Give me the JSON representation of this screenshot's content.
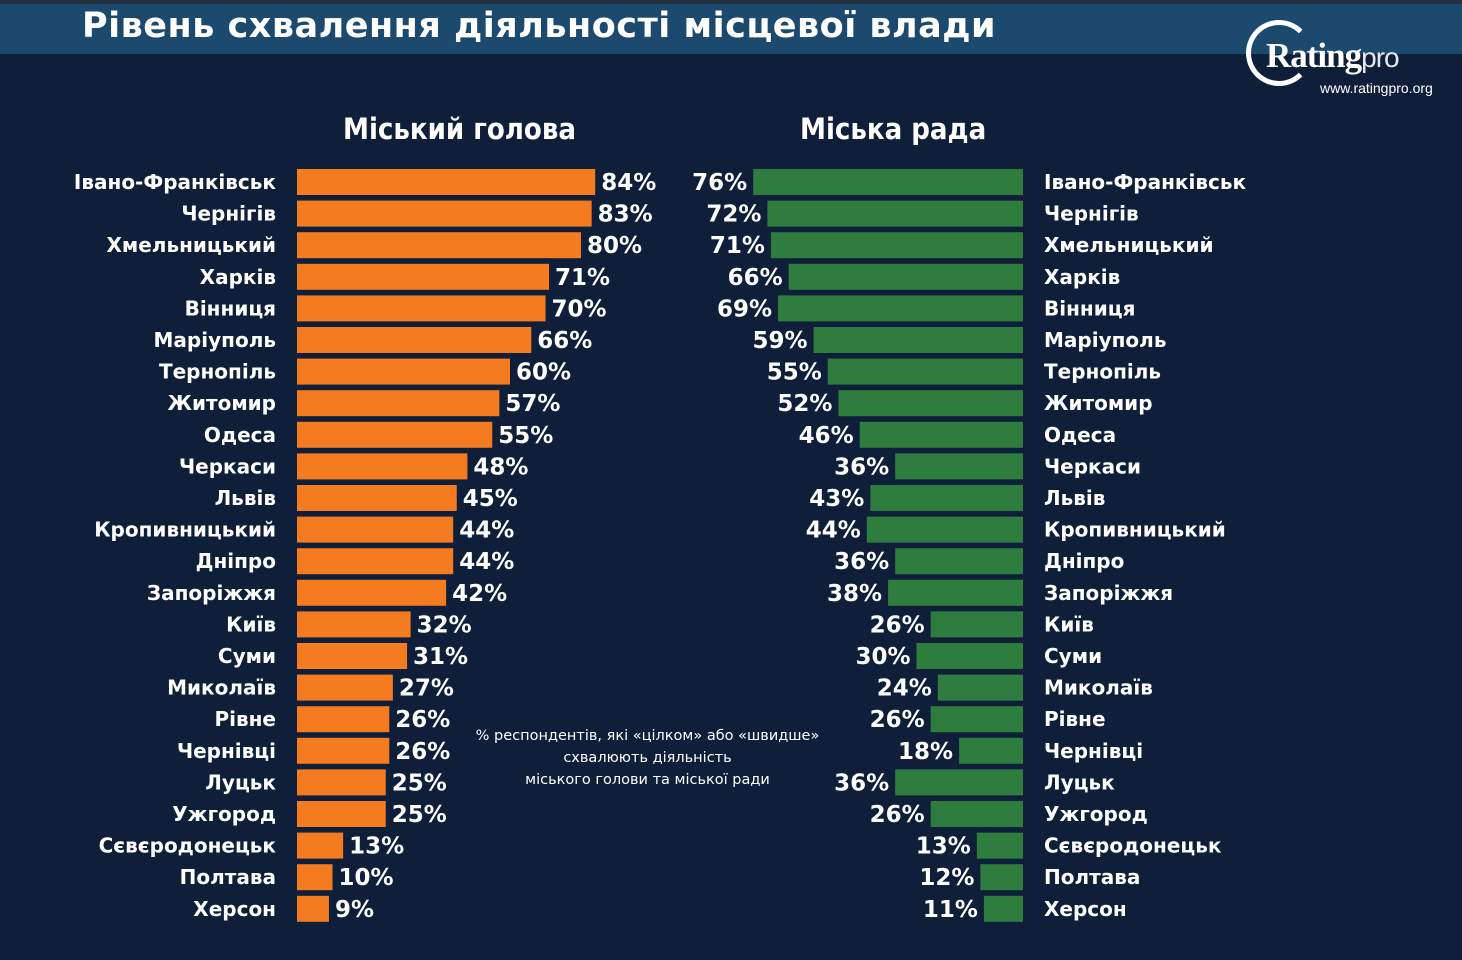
{
  "header": {
    "title": "Рівень схвалення діяльності місцевої влади"
  },
  "logo": {
    "brand": "Rating",
    "brand_suffix": "pro",
    "url": "www.ratingpro.org"
  },
  "footnote": {
    "line1": "% респондентів, які «цілком» або «швидше»",
    "line2": "схвалюють діяльність",
    "line3": "міського голови та міської ради"
  },
  "colors": {
    "background": "#0f1f3a",
    "title_bar": "#1c4a6e",
    "mayor_bar": "#f47b20",
    "council_bar": "#2e7d3e",
    "text": "#ffffff"
  },
  "chart_data": [
    {
      "type": "bar",
      "orientation": "horizontal",
      "title": "Міський голова",
      "unit": "%",
      "categories": [
        "Івано-Франківськ",
        "Чернігів",
        "Хмельницький",
        "Харків",
        "Вінниця",
        "Маріуполь",
        "Тернопіль",
        "Житомир",
        "Одеса",
        "Черкаси",
        "Львів",
        "Кропивницький",
        "Дніпро",
        "Запоріжжя",
        "Київ",
        "Суми",
        "Миколаїв",
        "Рівне",
        "Чернівці",
        "Луцьк",
        "Ужгород",
        "Сєвєродонецьк",
        "Полтава",
        "Херсон"
      ],
      "values": [
        84,
        83,
        80,
        71,
        70,
        66,
        60,
        57,
        55,
        48,
        45,
        44,
        44,
        42,
        32,
        31,
        27,
        26,
        26,
        25,
        25,
        13,
        10,
        9
      ],
      "color": "#f47b20"
    },
    {
      "type": "bar",
      "orientation": "horizontal",
      "title": "Міська рада",
      "unit": "%",
      "categories": [
        "Івано-Франківськ",
        "Чернігів",
        "Хмельницький",
        "Харків",
        "Вінниця",
        "Маріуполь",
        "Тернопіль",
        "Житомир",
        "Одеса",
        "Черкаси",
        "Львів",
        "Кропивницький",
        "Дніпро",
        "Запоріжжя",
        "Київ",
        "Суми",
        "Миколаїв",
        "Рівне",
        "Чернівці",
        "Луцьк",
        "Ужгород",
        "Сєвєродонецьк",
        "Полтава",
        "Херсон"
      ],
      "values": [
        76,
        72,
        71,
        66,
        69,
        59,
        55,
        52,
        46,
        36,
        43,
        44,
        36,
        38,
        26,
        30,
        24,
        26,
        18,
        36,
        26,
        13,
        12,
        11
      ],
      "color": "#2e7d3e"
    }
  ]
}
